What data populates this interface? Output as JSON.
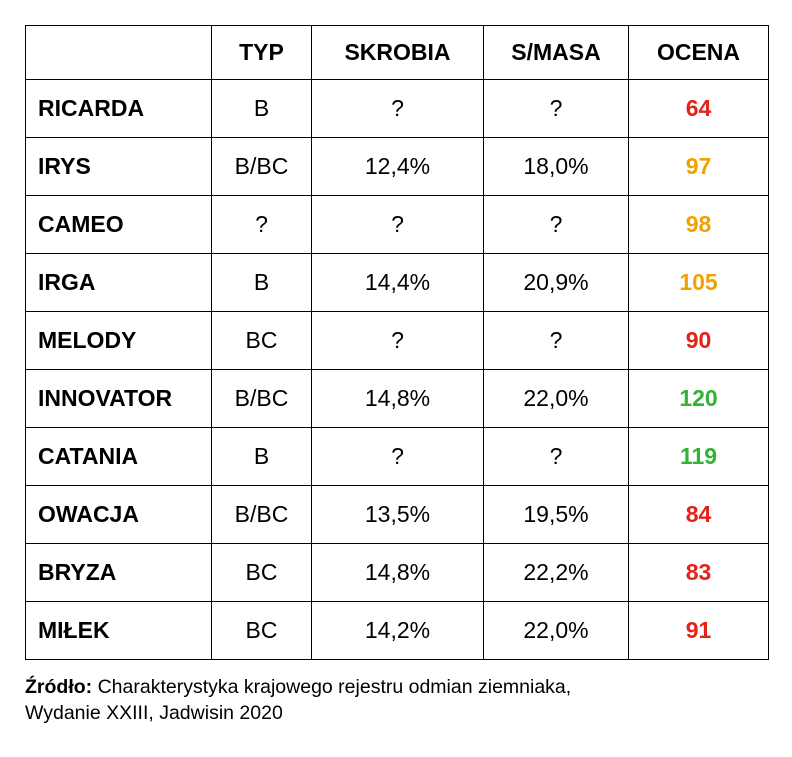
{
  "chart_data": {
    "type": "table",
    "columns": [
      "",
      "TYP",
      "SKROBIA",
      "S/MASA",
      "OCENA"
    ],
    "rows": [
      {
        "name": "RICARDA",
        "typ": "B",
        "skrobia": "?",
        "smasa": "?",
        "ocena": "64",
        "color": "#e2231a"
      },
      {
        "name": "IRYS",
        "typ": "B/BC",
        "skrobia": "12,4%",
        "smasa": "18,0%",
        "ocena": "97",
        "color": "#f0a202"
      },
      {
        "name": "CAMEO",
        "typ": "?",
        "skrobia": "?",
        "smasa": "?",
        "ocena": "98",
        "color": "#f0a202"
      },
      {
        "name": "IRGA",
        "typ": "B",
        "skrobia": "14,4%",
        "smasa": "20,9%",
        "ocena": "105",
        "color": "#f0a202"
      },
      {
        "name": "MELODY",
        "typ": "BC",
        "skrobia": "?",
        "smasa": "?",
        "ocena": "90",
        "color": "#e2231a"
      },
      {
        "name": "INNOVATOR",
        "typ": "B/BC",
        "skrobia": "14,8%",
        "smasa": "22,0%",
        "ocena": "120",
        "color": "#33b335"
      },
      {
        "name": "CATANIA",
        "typ": "B",
        "skrobia": "?",
        "smasa": "?",
        "ocena": "119",
        "color": "#33b335"
      },
      {
        "name": "OWACJA",
        "typ": "B/BC",
        "skrobia": "13,5%",
        "smasa": "19,5%",
        "ocena": "84",
        "color": "#e2231a"
      },
      {
        "name": "BRYZA",
        "typ": "BC",
        "skrobia": "14,8%",
        "smasa": "22,2%",
        "ocena": "83",
        "color": "#e2231a"
      },
      {
        "name": "MIŁEK",
        "typ": "BC",
        "skrobia": "14,2%",
        "smasa": "22,0%",
        "ocena": "91",
        "color": "#e2231a"
      }
    ],
    "title": "",
    "legend": {
      "ocena_color_coding": [
        "#e2231a = low score",
        "#f0a202 = medium score",
        "#33b335 = high score"
      ]
    }
  },
  "footer": {
    "label": "Źródło:",
    "text": "Charakterystyka krajowego rejestru odmian ziemniaka, Wydanie XXIII, Jadwisin 2020"
  }
}
